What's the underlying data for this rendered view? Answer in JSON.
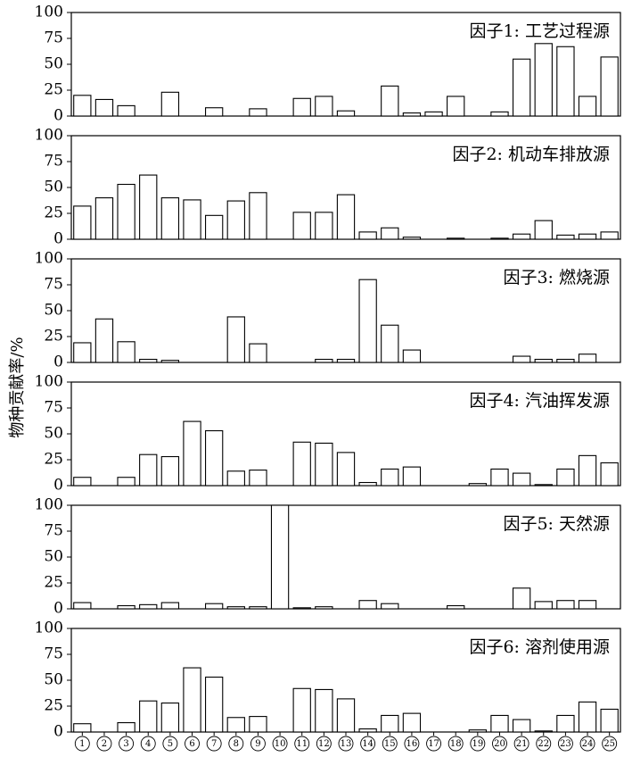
{
  "chart_data": {
    "type": "bar",
    "ylabel": "物种贡献率/%",
    "categories": [
      "①",
      "②",
      "③",
      "④",
      "⑤",
      "⑥",
      "⑦",
      "⑧",
      "⑨",
      "⑩",
      "⑪",
      "⑫",
      "⑬",
      "⑭",
      "⑮",
      "⑯",
      "⑰",
      "⑱",
      "⑲",
      "⑳",
      "㉑",
      "㉒",
      "㉓",
      "㉔",
      "㉕"
    ],
    "ylim": [
      0,
      100
    ],
    "yticks": [
      "0",
      "25",
      "50",
      "75",
      "100"
    ],
    "panels": [
      {
        "title": "因子1: 工艺过程源",
        "values": [
          20,
          16,
          10,
          0,
          23,
          0,
          8,
          0,
          7,
          0,
          17,
          19,
          5,
          0,
          29,
          3,
          4,
          19,
          0,
          4,
          55,
          70,
          67,
          19,
          57
        ]
      },
      {
        "title": "因子2: 机动车排放源",
        "values": [
          32,
          40,
          53,
          62,
          40,
          38,
          23,
          37,
          45,
          0,
          26,
          26,
          43,
          7,
          11,
          2,
          0,
          1,
          0,
          1,
          5,
          18,
          4,
          5,
          7
        ]
      },
      {
        "title": "因子3: 燃烧源",
        "values": [
          19,
          42,
          20,
          3,
          2,
          0,
          0,
          44,
          18,
          0,
          0,
          3,
          3,
          80,
          36,
          12,
          0,
          0,
          0,
          0,
          6,
          3,
          3,
          8,
          0
        ]
      },
      {
        "title": "因子4: 汽油挥发源",
        "values": [
          8,
          0,
          8,
          30,
          28,
          62,
          53,
          14,
          15,
          0,
          42,
          41,
          32,
          3,
          16,
          18,
          0,
          0,
          2,
          16,
          12,
          1,
          16,
          29,
          22
        ]
      },
      {
        "title": "因子5: 天然源",
        "values": [
          6,
          0,
          3,
          4,
          6,
          0,
          5,
          2,
          2,
          100,
          1,
          2,
          0,
          8,
          5,
          0,
          0,
          3,
          0,
          0,
          20,
          7,
          8,
          8,
          0
        ]
      },
      {
        "title": "因子6: 溶剂使用源",
        "values": [
          8,
          0,
          9,
          30,
          28,
          62,
          53,
          14,
          15,
          0,
          42,
          41,
          32,
          3,
          16,
          18,
          0,
          0,
          2,
          16,
          12,
          1,
          16,
          29,
          22
        ]
      }
    ]
  }
}
